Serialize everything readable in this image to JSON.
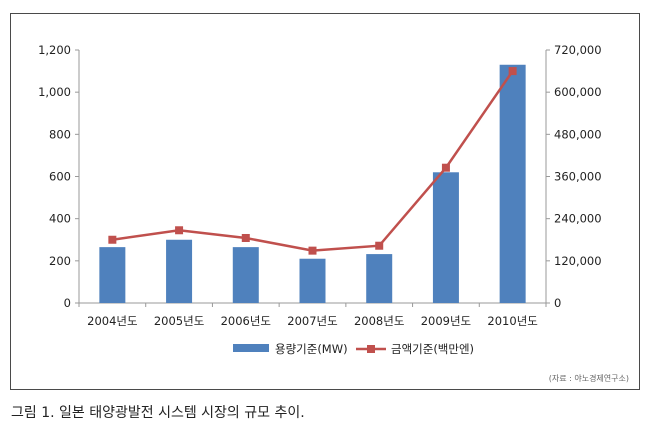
{
  "chart_data": {
    "type": "bar+line",
    "categories": [
      "2004년도",
      "2005년도",
      "2006년도",
      "2007년도",
      "2008년도",
      "2009년도",
      "2010년도"
    ],
    "series": [
      {
        "name": "용량기준(MW)",
        "type": "bar",
        "axis": "left",
        "values": [
          265,
          300,
          265,
          210,
          232,
          620,
          1130
        ],
        "color": "#4f81bd"
      },
      {
        "name": "금액기준(백만엔)",
        "type": "line",
        "axis": "right",
        "values": [
          180000,
          207000,
          185000,
          149000,
          163000,
          385000,
          660000
        ],
        "color": "#c0504d"
      }
    ],
    "y_left": {
      "min": 0,
      "max": 1200,
      "ticks": [
        "0",
        "200",
        "400",
        "600",
        "800",
        "1,000",
        "1,200"
      ]
    },
    "y_right": {
      "min": 0,
      "max": 720000,
      "ticks": [
        "0",
        "120,000",
        "240,000",
        "360,000",
        "480,000",
        "600,000",
        "720,000"
      ]
    },
    "grid": false,
    "legend": "bottom",
    "source": "(자료 : 야노경제연구소)"
  },
  "caption": "그림 1. 일본 태양광발전 시스템 시장의 규모 추이."
}
